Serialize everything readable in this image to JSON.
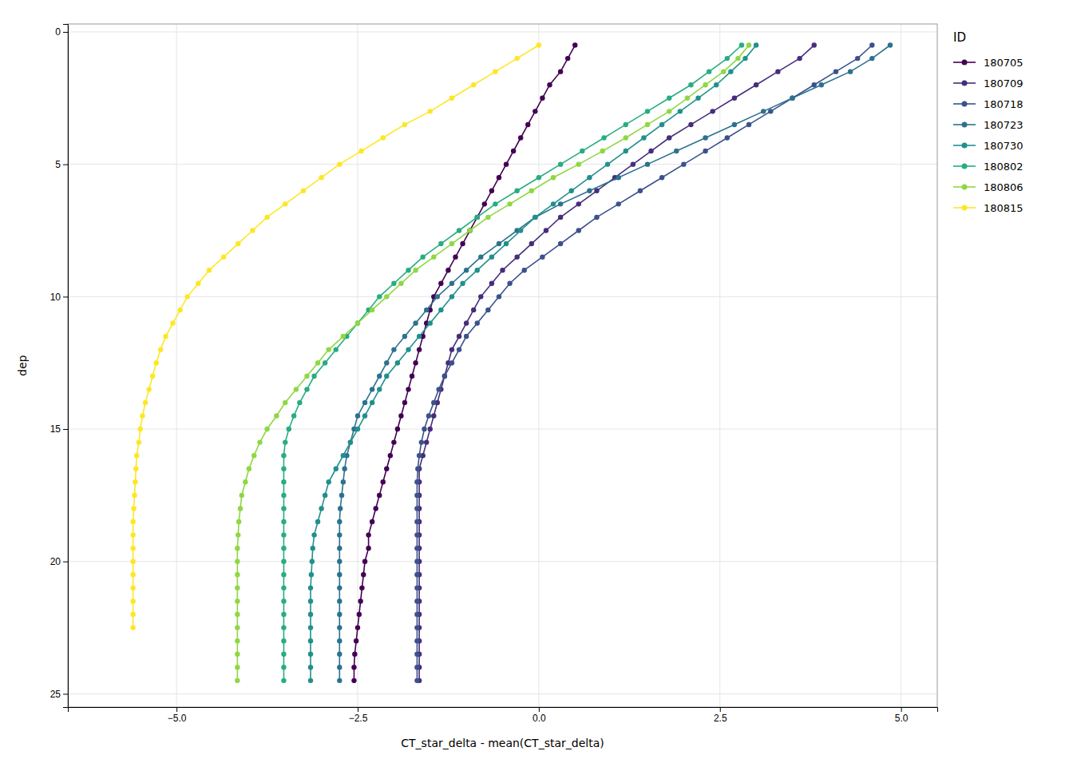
{
  "chart_data": {
    "type": "line",
    "x_label": "CT_star_delta - mean(CT_star_delta)",
    "y_label": "dep",
    "legend_title": "ID",
    "legend": "right",
    "grid": true,
    "marker": "circle",
    "xlim": [
      -6.5,
      5.5
    ],
    "ylim": [
      25.5,
      -0.3
    ],
    "xticks": [
      {
        "value": -5.0,
        "label": "−5.0"
      },
      {
        "value": -2.5,
        "label": "−2.5"
      },
      {
        "value": 0.0,
        "label": "0.0"
      },
      2.5,
      {
        "value": 5.0,
        "label": "5.0"
      }
    ],
    "yticks": [
      0,
      5,
      10,
      15,
      20,
      25
    ],
    "series": [
      {
        "name": "180705",
        "color": "#440154",
        "x": [
          0.5,
          0.4,
          0.3,
          0.15,
          0.05,
          -0.05,
          -0.15,
          -0.25,
          -0.35,
          -0.45,
          -0.55,
          -0.65,
          -0.75,
          -0.85,
          -0.95,
          -1.05,
          -1.15,
          -1.25,
          -1.35,
          -1.45,
          -1.5,
          -1.55,
          -1.6,
          -1.65,
          -1.7,
          -1.75,
          -1.8,
          -1.85,
          -1.9,
          -1.95,
          -2.0,
          -2.05,
          -2.1,
          -2.15,
          -2.2,
          -2.25,
          -2.3,
          -2.35,
          -2.35,
          -2.4,
          -2.42,
          -2.44,
          -2.46,
          -2.48,
          -2.5,
          -2.52,
          -2.54,
          -2.55,
          -2.55
        ],
        "values": [
          0.5,
          1.0,
          1.5,
          2.0,
          2.5,
          3.0,
          3.5,
          4.0,
          4.5,
          5.0,
          5.5,
          6.0,
          6.5,
          7.0,
          7.5,
          8.0,
          8.5,
          9.0,
          9.5,
          10.0,
          10.5,
          11.0,
          11.5,
          12.0,
          12.5,
          13.0,
          13.5,
          14.0,
          14.5,
          15.0,
          15.5,
          16.0,
          16.5,
          17.0,
          17.5,
          18.0,
          18.5,
          19.0,
          19.5,
          20.0,
          20.5,
          21.0,
          21.5,
          22.0,
          22.5,
          23.0,
          23.5,
          24.0,
          24.5
        ]
      },
      {
        "name": "180709",
        "color": "#472D7B",
        "x": [
          3.8,
          3.6,
          3.3,
          3.0,
          2.7,
          2.4,
          2.1,
          1.8,
          1.55,
          1.3,
          1.05,
          0.8,
          0.55,
          0.3,
          0.1,
          -0.1,
          -0.3,
          -0.5,
          -0.65,
          -0.8,
          -0.9,
          -1.0,
          -1.1,
          -1.2,
          -1.25,
          -1.3,
          -1.35,
          -1.4,
          -1.45,
          -1.5,
          -1.55,
          -1.6,
          -1.65,
          -1.65,
          -1.65,
          -1.65,
          -1.65,
          -1.65,
          -1.65,
          -1.65,
          -1.65,
          -1.65,
          -1.65,
          -1.65,
          -1.65,
          -1.65,
          -1.65,
          -1.65,
          -1.65
        ],
        "values": [
          0.5,
          1.0,
          1.5,
          2.0,
          2.5,
          3.0,
          3.5,
          4.0,
          4.5,
          5.0,
          5.5,
          6.0,
          6.5,
          7.0,
          7.5,
          8.0,
          8.5,
          9.0,
          9.5,
          10.0,
          10.5,
          11.0,
          11.5,
          12.0,
          12.5,
          13.0,
          13.5,
          14.0,
          14.5,
          15.0,
          15.5,
          16.0,
          16.5,
          17.0,
          17.5,
          18.0,
          18.5,
          19.0,
          19.5,
          20.0,
          20.5,
          21.0,
          21.5,
          22.0,
          22.5,
          23.0,
          23.5,
          24.0,
          24.5
        ]
      },
      {
        "name": "180718",
        "color": "#3B528B",
        "x": [
          4.6,
          4.4,
          4.1,
          3.8,
          3.5,
          3.2,
          2.9,
          2.6,
          2.3,
          2.0,
          1.7,
          1.4,
          1.1,
          0.8,
          0.55,
          0.3,
          0.05,
          -0.2,
          -0.4,
          -0.55,
          -0.7,
          -0.85,
          -1.0,
          -1.1,
          -1.2,
          -1.3,
          -1.38,
          -1.45,
          -1.52,
          -1.58,
          -1.62,
          -1.65,
          -1.67,
          -1.68,
          -1.68,
          -1.68,
          -1.68,
          -1.68,
          -1.68,
          -1.68,
          -1.68,
          -1.68,
          -1.68,
          -1.68,
          -1.68,
          -1.68,
          -1.68,
          -1.68,
          -1.68
        ],
        "values": [
          0.5,
          1.0,
          1.5,
          2.0,
          2.5,
          3.0,
          3.5,
          4.0,
          4.5,
          5.0,
          5.5,
          6.0,
          6.5,
          7.0,
          7.5,
          8.0,
          8.5,
          9.0,
          9.5,
          10.0,
          10.5,
          11.0,
          11.5,
          12.0,
          12.5,
          13.0,
          13.5,
          14.0,
          14.5,
          15.0,
          15.5,
          16.0,
          16.5,
          17.0,
          17.5,
          18.0,
          18.5,
          19.0,
          19.5,
          20.0,
          20.5,
          21.0,
          21.5,
          22.0,
          22.5,
          23.0,
          23.5,
          24.0,
          24.5
        ]
      },
      {
        "name": "180723",
        "color": "#2C728E",
        "x": [
          4.85,
          4.6,
          4.3,
          3.9,
          3.5,
          3.1,
          2.7,
          2.3,
          1.9,
          1.5,
          1.1,
          0.7,
          0.3,
          -0.05,
          -0.3,
          -0.55,
          -0.8,
          -1.0,
          -1.2,
          -1.4,
          -1.55,
          -1.7,
          -1.85,
          -2.0,
          -2.1,
          -2.2,
          -2.3,
          -2.4,
          -2.5,
          -2.55,
          -2.6,
          -2.65,
          -2.68,
          -2.7,
          -2.72,
          -2.74,
          -2.75,
          -2.75,
          -2.75,
          -2.75,
          -2.75,
          -2.75,
          -2.75,
          -2.75,
          -2.75,
          -2.75,
          -2.75,
          -2.75,
          -2.75
        ],
        "values": [
          0.5,
          1.0,
          1.5,
          2.0,
          2.5,
          3.0,
          3.5,
          4.0,
          4.5,
          5.0,
          5.5,
          6.0,
          6.5,
          7.0,
          7.5,
          8.0,
          8.5,
          9.0,
          9.5,
          10.0,
          10.5,
          11.0,
          11.5,
          12.0,
          12.5,
          13.0,
          13.5,
          14.0,
          14.5,
          15.0,
          15.5,
          16.0,
          16.5,
          17.0,
          17.5,
          18.0,
          18.5,
          19.0,
          19.5,
          20.0,
          20.5,
          21.0,
          21.5,
          22.0,
          22.5,
          23.0,
          23.5,
          24.0,
          24.5
        ]
      },
      {
        "name": "180730",
        "color": "#21908C",
        "x": [
          3.0,
          2.85,
          2.65,
          2.45,
          2.2,
          1.95,
          1.7,
          1.45,
          1.2,
          0.95,
          0.7,
          0.45,
          0.2,
          -0.05,
          -0.25,
          -0.45,
          -0.65,
          -0.85,
          -1.05,
          -1.2,
          -1.35,
          -1.5,
          -1.65,
          -1.8,
          -1.95,
          -2.1,
          -2.2,
          -2.3,
          -2.4,
          -2.5,
          -2.6,
          -2.7,
          -2.8,
          -2.9,
          -2.95,
          -3.0,
          -3.05,
          -3.1,
          -3.12,
          -3.13,
          -3.14,
          -3.15,
          -3.15,
          -3.15,
          -3.15,
          -3.15,
          -3.15,
          -3.15,
          -3.15
        ],
        "values": [
          0.5,
          1.0,
          1.5,
          2.0,
          2.5,
          3.0,
          3.5,
          4.0,
          4.5,
          5.0,
          5.5,
          6.0,
          6.5,
          7.0,
          7.5,
          8.0,
          8.5,
          9.0,
          9.5,
          10.0,
          10.5,
          11.0,
          11.5,
          12.0,
          12.5,
          13.0,
          13.5,
          14.0,
          14.5,
          15.0,
          15.5,
          16.0,
          16.5,
          17.0,
          17.5,
          18.0,
          18.5,
          19.0,
          19.5,
          20.0,
          20.5,
          21.0,
          21.5,
          22.0,
          22.5,
          23.0,
          23.5,
          24.0,
          24.5
        ]
      },
      {
        "name": "180802",
        "color": "#27AD81",
        "x": [
          2.8,
          2.6,
          2.35,
          2.1,
          1.8,
          1.5,
          1.2,
          0.9,
          0.6,
          0.3,
          0.0,
          -0.3,
          -0.6,
          -0.85,
          -1.1,
          -1.35,
          -1.6,
          -1.8,
          -2.0,
          -2.2,
          -2.35,
          -2.5,
          -2.65,
          -2.8,
          -2.95,
          -3.1,
          -3.2,
          -3.3,
          -3.38,
          -3.45,
          -3.5,
          -3.52,
          -3.52,
          -3.52,
          -3.52,
          -3.52,
          -3.52,
          -3.52,
          -3.52,
          -3.52,
          -3.52,
          -3.52,
          -3.52,
          -3.52,
          -3.52,
          -3.52,
          -3.52,
          -3.52,
          -3.52
        ],
        "values": [
          0.5,
          1.0,
          1.5,
          2.0,
          2.5,
          3.0,
          3.5,
          4.0,
          4.5,
          5.0,
          5.5,
          6.0,
          6.5,
          7.0,
          7.5,
          8.0,
          8.5,
          9.0,
          9.5,
          10.0,
          10.5,
          11.0,
          11.5,
          12.0,
          12.5,
          13.0,
          13.5,
          14.0,
          14.5,
          15.0,
          15.5,
          16.0,
          16.5,
          17.0,
          17.5,
          18.0,
          18.5,
          19.0,
          19.5,
          20.0,
          20.5,
          21.0,
          21.5,
          22.0,
          22.5,
          23.0,
          23.5,
          24.0,
          24.5
        ]
      },
      {
        "name": "180806",
        "color": "#8FD744",
        "x": [
          2.9,
          2.75,
          2.55,
          2.3,
          2.05,
          1.8,
          1.5,
          1.2,
          0.88,
          0.55,
          0.2,
          -0.1,
          -0.4,
          -0.7,
          -0.95,
          -1.2,
          -1.45,
          -1.7,
          -1.9,
          -2.1,
          -2.3,
          -2.5,
          -2.7,
          -2.9,
          -3.05,
          -3.2,
          -3.35,
          -3.5,
          -3.62,
          -3.75,
          -3.85,
          -3.93,
          -4.0,
          -4.05,
          -4.1,
          -4.12,
          -4.14,
          -4.15,
          -4.16,
          -4.16,
          -4.16,
          -4.16,
          -4.16,
          -4.16,
          -4.16,
          -4.16,
          -4.16,
          -4.16,
          -4.16
        ],
        "values": [
          0.5,
          1.0,
          1.5,
          2.0,
          2.5,
          3.0,
          3.5,
          4.0,
          4.5,
          5.0,
          5.5,
          6.0,
          6.5,
          7.0,
          7.5,
          8.0,
          8.5,
          9.0,
          9.5,
          10.0,
          10.5,
          11.0,
          11.5,
          12.0,
          12.5,
          13.0,
          13.5,
          14.0,
          14.5,
          15.0,
          15.5,
          16.0,
          16.5,
          17.0,
          17.5,
          18.0,
          18.5,
          19.0,
          19.5,
          20.0,
          20.5,
          21.0,
          21.5,
          22.0,
          22.5,
          23.0,
          23.5,
          24.0,
          24.5
        ]
      },
      {
        "name": "180815",
        "color": "#FDE725",
        "x": [
          0.0,
          -0.3,
          -0.6,
          -0.9,
          -1.2,
          -1.5,
          -1.85,
          -2.15,
          -2.45,
          -2.75,
          -3.0,
          -3.25,
          -3.5,
          -3.75,
          -3.95,
          -4.15,
          -4.35,
          -4.55,
          -4.7,
          -4.85,
          -4.95,
          -5.05,
          -5.15,
          -5.22,
          -5.28,
          -5.33,
          -5.38,
          -5.43,
          -5.47,
          -5.5,
          -5.52,
          -5.55,
          -5.56,
          -5.57,
          -5.58,
          -5.59,
          -5.6,
          -5.6,
          -5.6,
          -5.6,
          -5.6,
          -5.6,
          -5.6,
          -5.6,
          -5.6
        ],
        "values": [
          0.5,
          1.0,
          1.5,
          2.0,
          2.5,
          3.0,
          3.5,
          4.0,
          4.5,
          5.0,
          5.5,
          6.0,
          6.5,
          7.0,
          7.5,
          8.0,
          8.5,
          9.0,
          9.5,
          10.0,
          10.5,
          11.0,
          11.5,
          12.0,
          12.5,
          13.0,
          13.5,
          14.0,
          14.5,
          15.0,
          15.5,
          16.0,
          16.5,
          17.0,
          17.5,
          18.0,
          18.5,
          19.0,
          19.5,
          20.0,
          20.5,
          21.0,
          21.5,
          22.0,
          22.5
        ]
      }
    ]
  }
}
